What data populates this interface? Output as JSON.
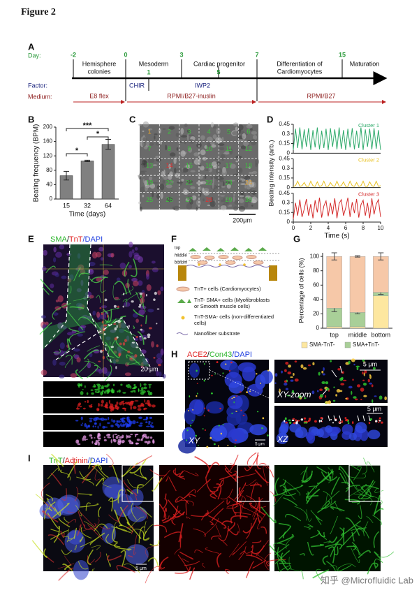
{
  "figure_title": "Figure 2",
  "panel_letters": [
    "A",
    "B",
    "C",
    "D",
    "E",
    "F",
    "G",
    "H",
    "I"
  ],
  "timeline": {
    "row_labels": [
      "Day:",
      "Factor:",
      "Medium:"
    ],
    "days": [
      "-2",
      "0",
      "3",
      "7",
      "15"
    ],
    "sub_days": [
      "1",
      "5"
    ],
    "stages": [
      [
        "Hemisphere",
        "colonies"
      ],
      [
        "Mesoderm"
      ],
      [
        "Cardiac progenitor"
      ],
      [
        "Differentiation of",
        "Cardiomyocytes"
      ],
      [
        "Maturation"
      ]
    ],
    "factors": [
      "CHIR",
      "IWP2"
    ],
    "media": [
      "E8 flex",
      "RPMI/B27-inuslin",
      "RPMI/B27"
    ]
  },
  "chart_data": [
    {
      "type": "bar",
      "ylabel": "Beating frequency (BPM)",
      "xlabel": "Time (days)",
      "categories": [
        "15",
        "32",
        "64"
      ],
      "values": [
        65,
        106,
        152
      ],
      "errors": [
        12,
        2,
        14
      ],
      "color": "#808080",
      "ylim": [
        0,
        200
      ],
      "yticks": [
        0,
        40,
        80,
        120,
        160,
        200
      ],
      "significance": [
        "*",
        "*",
        "***"
      ]
    },
    {
      "type": "line",
      "ylabel": "Beating intensity (arb.)",
      "xlabel": "Time (s)",
      "x": [
        0,
        0.25,
        0.5,
        0.75,
        1,
        1.25,
        1.5,
        1.75,
        2,
        2.25,
        2.5,
        2.75,
        3,
        3.25,
        3.5,
        3.75,
        4,
        4.25,
        4.5,
        4.75,
        5,
        5.25,
        5.5,
        5.75,
        6,
        6.25,
        6.5,
        6.75,
        7,
        7.25,
        7.5,
        7.75,
        8,
        8.25,
        8.5,
        8.75,
        9,
        9.25,
        9.5,
        9.75,
        10
      ],
      "xlim": [
        0,
        10
      ],
      "xticks": [
        0,
        2,
        4,
        6,
        8,
        10
      ],
      "ylim": [
        0,
        0.45
      ],
      "yticks": [
        0,
        0.15,
        0.3,
        0.45
      ],
      "series": [
        {
          "name": "Cluster 1",
          "color": "#2eaa6a",
          "values": [
            0.05,
            0.38,
            0.08,
            0.4,
            0.06,
            0.37,
            0.1,
            0.39,
            0.05,
            0.36,
            0.09,
            0.4,
            0.06,
            0.35,
            0.08,
            0.38,
            0.05,
            0.39,
            0.1,
            0.37,
            0.06,
            0.4,
            0.07,
            0.36,
            0.05,
            0.38,
            0.09,
            0.39,
            0.06,
            0.35,
            0.08,
            0.4,
            0.05,
            0.37,
            0.1,
            0.38,
            0.06,
            0.39,
            0.07,
            0.36,
            0.05
          ]
        },
        {
          "name": "Cluster 2",
          "color": "#e8c020",
          "values": [
            0.02,
            0.03,
            0.1,
            0.02,
            0.03,
            0.08,
            0.02,
            0.02,
            0.1,
            0.03,
            0.02,
            0.09,
            0.02,
            0.03,
            0.1,
            0.02,
            0.02,
            0.08,
            0.03,
            0.02,
            0.1,
            0.02,
            0.03,
            0.09,
            0.02,
            0.02,
            0.1,
            0.03,
            0.02,
            0.08,
            0.02,
            0.03,
            0.1,
            0.02,
            0.02,
            0.09,
            0.03,
            0.02,
            0.1,
            0.02,
            0.03
          ]
        },
        {
          "name": "Cluster 3",
          "color": "#d42a2a",
          "values": [
            0.05,
            0.3,
            0.1,
            0.35,
            0.08,
            0.2,
            0.36,
            0.1,
            0.28,
            0.06,
            0.34,
            0.15,
            0.38,
            0.07,
            0.25,
            0.33,
            0.09,
            0.3,
            0.12,
            0.37,
            0.06,
            0.29,
            0.35,
            0.1,
            0.22,
            0.38,
            0.08,
            0.31,
            0.14,
            0.36,
            0.07,
            0.27,
            0.34,
            0.1,
            0.3,
            0.06,
            0.37,
            0.12,
            0.28,
            0.35,
            0.08
          ]
        }
      ]
    },
    {
      "type": "stacked_bar",
      "ylabel": "Percentage of cells (%)",
      "categories": [
        "top",
        "middle",
        "bottom"
      ],
      "ylim": [
        0,
        105
      ],
      "yticks": [
        0,
        20,
        40,
        60,
        80,
        100
      ],
      "legend": "bottom",
      "series": [
        {
          "name": "SMA-TnT-",
          "color": "#fde7a0",
          "values": [
            2,
            2,
            45
          ]
        },
        {
          "name": "SMA+TnT-",
          "color": "#a9cf98",
          "values": [
            26,
            20,
            5
          ],
          "errors": [
            5,
            2,
            3
          ]
        },
        {
          "color": "#f6c8a8",
          "values": [
            72,
            78,
            50
          ],
          "errors": [
            5,
            1,
            5
          ]
        }
      ]
    }
  ],
  "image_c": {
    "scale": "200μm",
    "cells": [
      {
        "label": "1",
        "color": "#e0a030"
      },
      {
        "label": "2",
        "color": "#3cc43c"
      },
      {
        "label": "3",
        "color": "#3cc43c"
      },
      {
        "label": "4",
        "color": "#3cc43c"
      },
      {
        "label": "5",
        "color": "#3cc43c"
      },
      {
        "label": "6",
        "color": "#3cc43c"
      },
      {
        "label": "7",
        "color": "#3cc43c"
      },
      {
        "label": "8",
        "color": "#3cc43c"
      },
      {
        "label": "9",
        "color": "#3cc43c"
      },
      {
        "label": "10",
        "color": "#3cc43c"
      },
      {
        "label": "11",
        "color": "#3cc43c"
      },
      {
        "label": "12",
        "color": "#3cc43c"
      },
      {
        "label": "13",
        "color": "#3cc43c"
      },
      {
        "label": "14",
        "color": "#e03030"
      },
      {
        "label": "15",
        "color": "#3cc43c"
      },
      {
        "label": "16",
        "color": "#3cc43c"
      },
      {
        "label": "17",
        "color": "#3cc43c"
      },
      {
        "label": "18",
        "color": "#3cc43c"
      },
      {
        "label": "19",
        "color": "#3cc43c"
      },
      {
        "label": "20",
        "color": "#3cc43c"
      },
      {
        "label": "21",
        "color": "#3cc43c"
      },
      {
        "label": "22",
        "color": "#3cc43c"
      },
      {
        "label": "23",
        "color": "#3cc43c"
      },
      {
        "label": "24",
        "color": "#e0a030"
      },
      {
        "label": "25",
        "color": "#3cc43c"
      },
      {
        "label": "26",
        "color": "#3cc43c"
      },
      {
        "label": "27",
        "color": "#3cc43c"
      },
      {
        "label": "28",
        "color": "#e03030"
      },
      {
        "label": "29",
        "color": "#3cc43c"
      },
      {
        "label": "30",
        "color": "#3cc43c"
      }
    ]
  },
  "panel_e": {
    "stain": [
      "SMA",
      "/",
      "TnT",
      "/DAPI"
    ],
    "scale": "20 μm"
  },
  "panel_f": {
    "layers": [
      "top",
      "middle",
      "bottom"
    ],
    "legend": [
      [
        "TnT+ cells (Cardiomyocytes)"
      ],
      [
        "TnT- SMA+ cells (Myofibroblasts",
        "or Smooth muscle cells)"
      ],
      [
        "TnT-SMA- cells (non-differentiated",
        "cells)"
      ],
      [
        "Nanofiber substrate"
      ]
    ]
  },
  "panel_h": {
    "stain": [
      "ACE2",
      "/",
      "Con43",
      "/DAPI"
    ],
    "views": [
      "XY",
      "XY-zoom",
      "XZ"
    ],
    "scales": [
      "5 μm",
      "5 μm",
      "5 μm"
    ]
  },
  "panel_i": {
    "stain": [
      "TnT",
      "/",
      "Actinin",
      "/DAPI"
    ],
    "scale": "5 μm"
  },
  "watermark": "知乎 @Microfluidic Lab"
}
